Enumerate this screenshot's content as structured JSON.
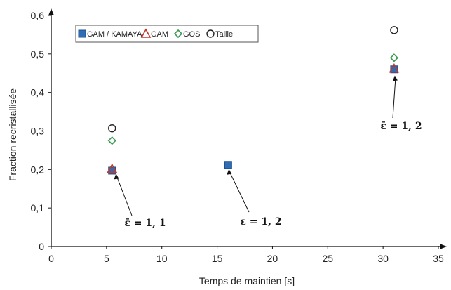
{
  "chart_data": {
    "type": "scatter",
    "xlabel": "Temps de maintien [s]",
    "ylabel": "Fraction recristallisée",
    "xlim": [
      0,
      35
    ],
    "ylim": [
      0,
      0.6
    ],
    "xticks": [
      "0",
      "5",
      "10",
      "15",
      "20",
      "25",
      "30",
      "35"
    ],
    "yticks": [
      "0",
      "0,1",
      "0,2",
      "0,3",
      "0,4",
      "0,5",
      "0,6"
    ],
    "grid": false,
    "legend_position": "top-left",
    "series": [
      {
        "name": "GAM / KAMAYA",
        "marker": "square",
        "color": "#2e6db5",
        "points": [
          {
            "x": 5.5,
            "y": 0.197
          },
          {
            "x": 16,
            "y": 0.212
          },
          {
            "x": 31,
            "y": 0.46
          }
        ]
      },
      {
        "name": "GAM",
        "marker": "triangle",
        "color": "#c0392b",
        "points": [
          {
            "x": 5.5,
            "y": 0.202
          },
          {
            "x": 31,
            "y": 0.462
          }
        ]
      },
      {
        "name": "GOS",
        "marker": "diamond",
        "color": "#3a9a50",
        "points": [
          {
            "x": 5.5,
            "y": 0.275
          },
          {
            "x": 31,
            "y": 0.49
          }
        ]
      },
      {
        "name": "Taille",
        "marker": "circle",
        "color": "#222222",
        "points": [
          {
            "x": 5.5,
            "y": 0.307
          },
          {
            "x": 31,
            "y": 0.562
          }
        ]
      }
    ],
    "annotations": [
      {
        "text": "ε̄ = 1, 1",
        "x": 5.8,
        "y": 0.2
      },
      {
        "text": "ε = 1, 2",
        "x": 16,
        "y": 0.212
      },
      {
        "text": "ε̄ = 1, 2",
        "x": 31,
        "y": 0.455
      }
    ]
  }
}
